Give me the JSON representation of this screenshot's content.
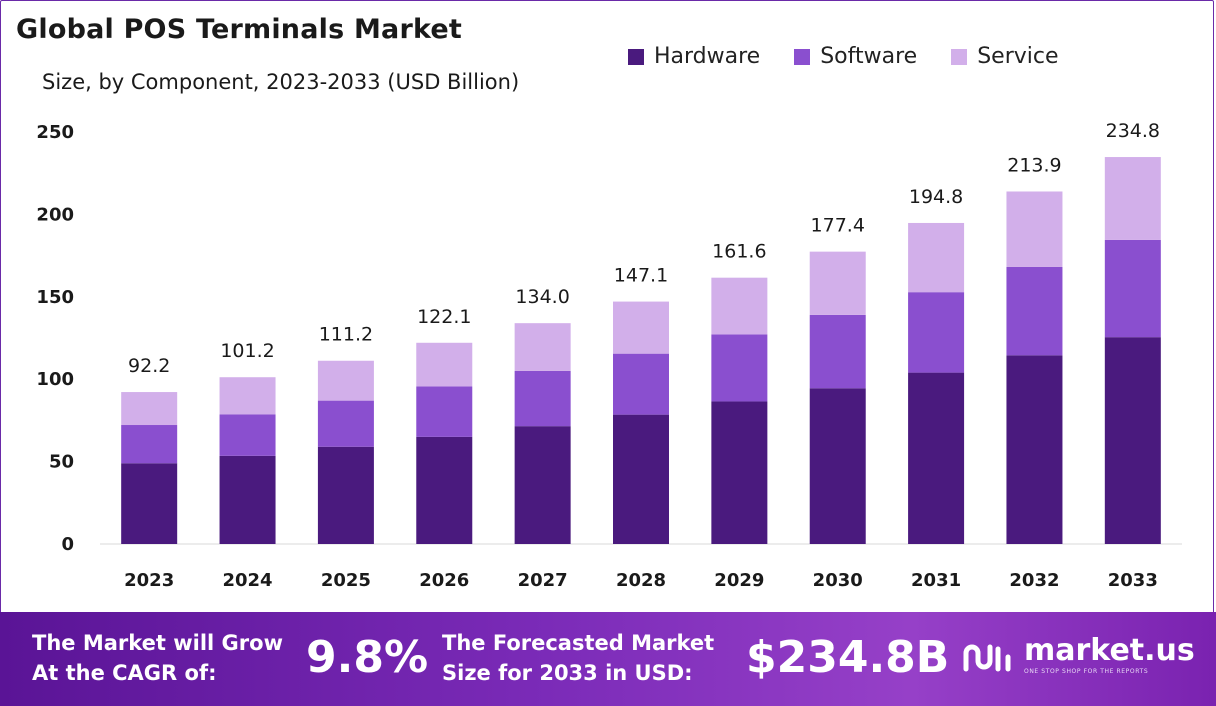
{
  "header": {
    "title": "Global POS Terminals Market",
    "subtitle": "Size, by Component, 2023-2033 (USD Billion)"
  },
  "legend": [
    {
      "label": "Hardware",
      "color": "#4a1a7e"
    },
    {
      "label": "Software",
      "color": "#8a4fcf"
    },
    {
      "label": "Service",
      "color": "#d2afea"
    }
  ],
  "chart_data": {
    "type": "bar",
    "stacked": true,
    "title": "Global POS Terminals Market",
    "subtitle": "Size, by Component, 2023-2033 (USD Billion)",
    "categories": [
      "2023",
      "2024",
      "2025",
      "2026",
      "2027",
      "2028",
      "2029",
      "2030",
      "2031",
      "2032",
      "2033"
    ],
    "series": [
      {
        "name": "Hardware",
        "color": "#4a1a7e",
        "values": [
          49.0,
          53.5,
          59.0,
          65.0,
          71.5,
          78.5,
          86.5,
          94.5,
          104.0,
          114.5,
          125.5
        ]
      },
      {
        "name": "Software",
        "color": "#8a4fcf",
        "values": [
          23.2,
          25.2,
          28.0,
          30.6,
          33.5,
          37.0,
          40.7,
          44.5,
          48.8,
          53.6,
          59.0
        ]
      },
      {
        "name": "Service",
        "color": "#d2afea",
        "values": [
          20.0,
          22.5,
          24.2,
          26.5,
          29.0,
          31.6,
          34.4,
          38.4,
          42.0,
          45.8,
          50.3
        ]
      }
    ],
    "totals": [
      "92.2",
      "101.2",
      "111.2",
      "122.1",
      "134.0",
      "147.1",
      "161.6",
      "177.4",
      "194.8",
      "213.9",
      "234.8"
    ],
    "yticks": [
      0,
      50,
      100,
      150,
      200,
      250
    ],
    "ylim": [
      0,
      250
    ],
    "grid": false,
    "legend_position": "top-right"
  },
  "footer": {
    "cagr_text_line1": "The Market will Grow",
    "cagr_text_line2": "At the CAGR of:",
    "cagr_value": "9.8%",
    "forecast_text_line1": "The Forecasted Market",
    "forecast_text_line2": "Size for 2033 in USD:",
    "forecast_value": "$234.8B",
    "brand_name": "market.us",
    "brand_tagline": "ONE STOP SHOP FOR THE REPORTS"
  }
}
